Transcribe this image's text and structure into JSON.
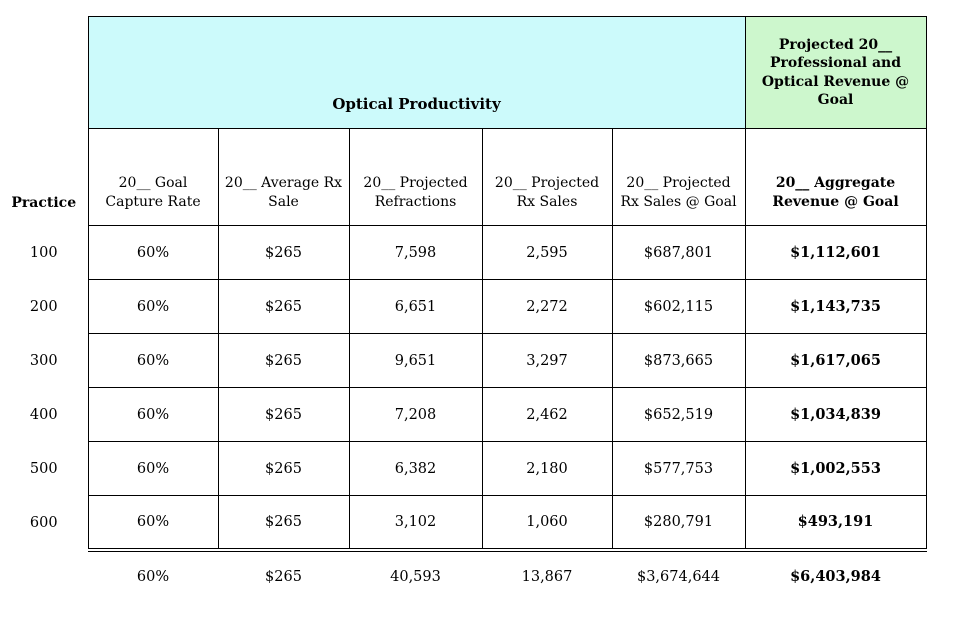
{
  "table": {
    "practice_label": "Practice",
    "optical_productivity_header": "Optical Productivity",
    "projected_revenue_header": "Projected 20__ Professional and Optical Revenue @ Goal",
    "column_headers": [
      "20__ Goal Capture Rate",
      "20__ Average Rx Sale",
      "20__ Projected Refractions",
      "20__ Projected Rx Sales",
      "20__ Projected Rx Sales @ Goal",
      "20__ Aggregate Revenue @ Goal"
    ],
    "rows": [
      [
        "100",
        "60%",
        "$265",
        "7,598",
        "2,595",
        "$687,801",
        "$1,112,601"
      ],
      [
        "200",
        "60%",
        "$265",
        "6,651",
        "2,272",
        "$602,115",
        "$1,143,735"
      ],
      [
        "300",
        "60%",
        "$265",
        "9,651",
        "3,297",
        "$873,665",
        "$1,617,065"
      ],
      [
        "400",
        "60%",
        "$265",
        "7,208",
        "2,462",
        "$652,519",
        "$1,034,839"
      ],
      [
        "500",
        "60%",
        "$265",
        "6,382",
        "2,180",
        "$577,753",
        "$1,002,553"
      ],
      [
        "600",
        "60%",
        "$265",
        "3,102",
        "1,060",
        "$280,791",
        "$493,191"
      ]
    ],
    "totals": [
      "",
      "60%",
      "$265",
      "40,593",
      "13,867",
      "$3,674,644",
      "$6,403,984"
    ],
    "colors": {
      "optical_band_bg": "#ccfafb",
      "revenue_band_bg": "#cdf7cd",
      "border": "#000000"
    }
  },
  "chart_data": {
    "type": "table",
    "title": "Optical Productivity",
    "columns": [
      "Practice",
      "20__ Goal Capture Rate",
      "20__ Average Rx Sale",
      "20__ Projected Refractions",
      "20__ Projected Rx Sales",
      "20__ Projected Rx Sales @ Goal",
      "20__ Aggregate Revenue @ Goal"
    ],
    "group_headers": {
      "Optical Productivity": [
        "20__ Goal Capture Rate",
        "20__ Average Rx Sale",
        "20__ Projected Refractions",
        "20__ Projected Rx Sales",
        "20__ Projected Rx Sales @ Goal"
      ],
      "Projected 20__ Professional and Optical Revenue @ Goal": [
        "20__ Aggregate Revenue @ Goal"
      ]
    },
    "rows": [
      [
        "100",
        "60%",
        "$265",
        "7,598",
        "2,595",
        "$687,801",
        "$1,112,601"
      ],
      [
        "200",
        "60%",
        "$265",
        "6,651",
        "2,272",
        "$602,115",
        "$1,143,735"
      ],
      [
        "300",
        "60%",
        "$265",
        "9,651",
        "3,297",
        "$873,665",
        "$1,617,065"
      ],
      [
        "400",
        "60%",
        "$265",
        "7,208",
        "2,462",
        "$652,519",
        "$1,034,839"
      ],
      [
        "500",
        "60%",
        "$265",
        "6,382",
        "2,180",
        "$577,753",
        "$1,002,553"
      ],
      [
        "600",
        "60%",
        "$265",
        "3,102",
        "1,060",
        "$280,791",
        "$493,191"
      ],
      [
        "",
        "60%",
        "$265",
        "40,593",
        "13,867",
        "$3,674,644",
        "$6,403,984"
      ]
    ],
    "notes": "Last row is column totals; aggregate revenue column is bold; double rule separates totals from body."
  }
}
